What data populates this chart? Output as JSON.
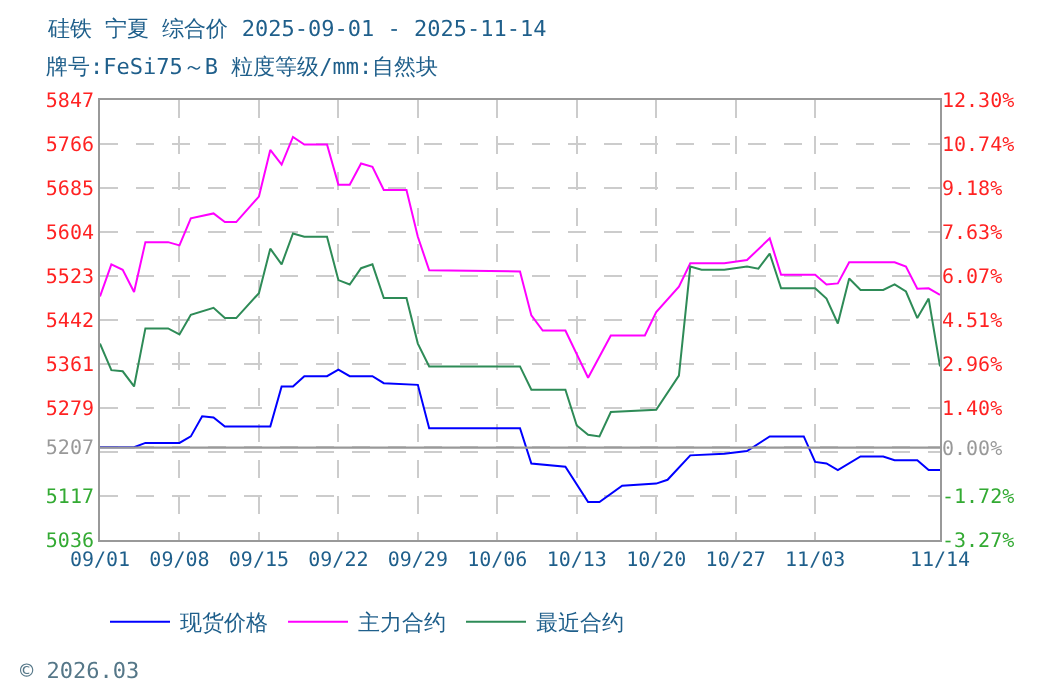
{
  "chart_data": {
    "type": "line",
    "title": "硅铁 宁夏 综合价 2025-09-01 - 2025-11-14",
    "subtitle": "牌号:FeSi75～B 粒度等级/mm:自然块",
    "xlim": [
      "2025-09-01",
      "2025-11-14"
    ],
    "xticks": [
      {
        "value": "2025-09-01",
        "label": "09/01"
      },
      {
        "value": "2025-09-08",
        "label": "09/08"
      },
      {
        "value": "2025-09-15",
        "label": "09/15"
      },
      {
        "value": "2025-09-22",
        "label": "09/22"
      },
      {
        "value": "2025-09-29",
        "label": "09/29"
      },
      {
        "value": "2025-10-06",
        "label": "10/06"
      },
      {
        "value": "2025-10-13",
        "label": "10/13"
      },
      {
        "value": "2025-10-20",
        "label": "10/20"
      },
      {
        "value": "2025-10-27",
        "label": "10/27"
      },
      {
        "value": "2025-11-03",
        "label": "11/03"
      },
      {
        "value": "2025-11-14",
        "label": "11/14"
      }
    ],
    "ylim": [
      5036,
      5847
    ],
    "yticks": [
      5036,
      5117,
      {
        "value": 5198,
        "label": null
      },
      5207,
      5279,
      5361,
      5442,
      5523,
      5604,
      5685,
      5766,
      5847
    ],
    "y2lim": [
      -3.27,
      12.3
    ],
    "y2ticks": [
      {
        "value": -3.27,
        "label": "-3.27%"
      },
      {
        "value": -1.72,
        "label": "-1.72%"
      },
      {
        "value": 0,
        "label": "0.00%"
      },
      {
        "value": 1.4,
        "label": "1.40%"
      },
      {
        "value": 2.96,
        "label": "2.96%"
      },
      {
        "value": 4.51,
        "label": "4.51%"
      },
      {
        "value": 6.07,
        "label": "6.07%"
      },
      {
        "value": 7.63,
        "label": "7.63%"
      },
      {
        "value": 9.18,
        "label": "9.18%"
      },
      {
        "value": 10.74,
        "label": "10.74%"
      },
      {
        "value": 12.3,
        "label": "12.30%"
      }
    ],
    "grid": true,
    "legend": "bottom",
    "marker": "none",
    "line_style": "solid",
    "ref_lines": [
      {
        "axis": "y2",
        "value": 0,
        "color": "#999999"
      }
    ],
    "annotations": [
      "© 2026.03"
    ],
    "series": [
      {
        "name": "现货价格",
        "color": "#0000ff",
        "x": [
          "2025-09-01",
          "2025-09-04",
          "2025-09-05",
          "2025-09-08",
          "2025-09-09",
          "2025-09-10",
          "2025-09-11",
          "2025-09-12",
          "2025-09-16",
          "2025-09-17",
          "2025-09-18",
          "2025-09-19",
          "2025-09-21",
          "2025-09-22",
          "2025-09-23",
          "2025-09-25",
          "2025-09-26",
          "2025-09-29",
          "2025-09-30",
          "2025-10-08",
          "2025-10-09",
          "2025-10-12",
          "2025-10-14",
          "2025-10-15",
          "2025-10-17",
          "2025-10-20",
          "2025-10-21",
          "2025-10-23",
          "2025-10-26",
          "2025-10-28",
          "2025-10-30",
          "2025-11-02",
          "2025-11-03",
          "2025-11-04",
          "2025-11-05",
          "2025-11-07",
          "2025-11-09",
          "2025-11-10",
          "2025-11-12",
          "2025-11-13",
          "2025-11-14"
        ],
        "values": [
          5207,
          5207,
          5215,
          5215,
          5227,
          5264,
          5262,
          5245,
          5245,
          5319,
          5319,
          5338,
          5338,
          5350,
          5338,
          5338,
          5325,
          5322,
          5242,
          5242,
          5177,
          5171,
          5106,
          5106,
          5136,
          5140,
          5147,
          5192,
          5195,
          5200,
          5227,
          5227,
          5180,
          5177,
          5165,
          5190,
          5190,
          5183,
          5183,
          5165,
          5165
        ]
      },
      {
        "name": "主力合约",
        "color": "#ff00ff",
        "x": [
          "2025-09-01",
          "2025-09-02",
          "2025-09-03",
          "2025-09-04",
          "2025-09-05",
          "2025-09-07",
          "2025-09-08",
          "2025-09-09",
          "2025-09-11",
          "2025-09-12",
          "2025-09-13",
          "2025-09-15",
          "2025-09-16",
          "2025-09-17",
          "2025-09-18",
          "2025-09-19",
          "2025-09-21",
          "2025-09-22",
          "2025-09-23",
          "2025-09-24",
          "2025-09-25",
          "2025-09-26",
          "2025-09-28",
          "2025-09-29",
          "2025-09-30",
          "2025-10-08",
          "2025-10-09",
          "2025-10-10",
          "2025-10-12",
          "2025-10-14",
          "2025-10-16",
          "2025-10-19",
          "2025-10-20",
          "2025-10-22",
          "2025-10-23",
          "2025-10-26",
          "2025-10-28",
          "2025-10-30",
          "2025-10-31",
          "2025-11-03",
          "2025-11-04",
          "2025-11-05",
          "2025-11-06",
          "2025-11-10",
          "2025-11-11",
          "2025-11-12",
          "2025-11-13",
          "2025-11-14"
        ],
        "values": [
          5485,
          5544,
          5534,
          5493,
          5585,
          5585,
          5579,
          5629,
          5638,
          5622,
          5622,
          5669,
          5755,
          5728,
          5779,
          5765,
          5765,
          5691,
          5691,
          5730,
          5724,
          5681,
          5681,
          5595,
          5533,
          5531,
          5450,
          5422,
          5422,
          5335,
          5413,
          5413,
          5456,
          5503,
          5546,
          5546,
          5552,
          5592,
          5525,
          5525,
          5507,
          5509,
          5548,
          5548,
          5540,
          5499,
          5500,
          5488
        ]
      },
      {
        "name": "最近合约",
        "color": "#2e8b57",
        "x": [
          "2025-09-01",
          "2025-09-02",
          "2025-09-03",
          "2025-09-04",
          "2025-09-05",
          "2025-09-07",
          "2025-09-08",
          "2025-09-09",
          "2025-09-11",
          "2025-09-12",
          "2025-09-13",
          "2025-09-15",
          "2025-09-16",
          "2025-09-17",
          "2025-09-18",
          "2025-09-19",
          "2025-09-21",
          "2025-09-22",
          "2025-09-23",
          "2025-09-24",
          "2025-09-25",
          "2025-09-26",
          "2025-09-28",
          "2025-09-29",
          "2025-09-30",
          "2025-10-08",
          "2025-10-09",
          "2025-10-12",
          "2025-10-13",
          "2025-10-14",
          "2025-10-15",
          "2025-10-16",
          "2025-10-20",
          "2025-10-22",
          "2025-10-23",
          "2025-10-24",
          "2025-10-26",
          "2025-10-28",
          "2025-10-29",
          "2025-10-30",
          "2025-10-31",
          "2025-11-03",
          "2025-11-04",
          "2025-11-05",
          "2025-11-06",
          "2025-11-07",
          "2025-11-09",
          "2025-11-10",
          "2025-11-11",
          "2025-11-12",
          "2025-11-13",
          "2025-11-14"
        ],
        "values": [
          5398,
          5349,
          5347,
          5319,
          5426,
          5426,
          5415,
          5451,
          5464,
          5445,
          5445,
          5491,
          5573,
          5544,
          5601,
          5595,
          5595,
          5515,
          5507,
          5537,
          5544,
          5482,
          5482,
          5398,
          5356,
          5356,
          5313,
          5313,
          5247,
          5230,
          5227,
          5272,
          5276,
          5339,
          5540,
          5534,
          5534,
          5540,
          5536,
          5564,
          5500,
          5500,
          5481,
          5435,
          5518,
          5497,
          5497,
          5507,
          5494,
          5445,
          5481,
          5356
        ]
      }
    ]
  }
}
